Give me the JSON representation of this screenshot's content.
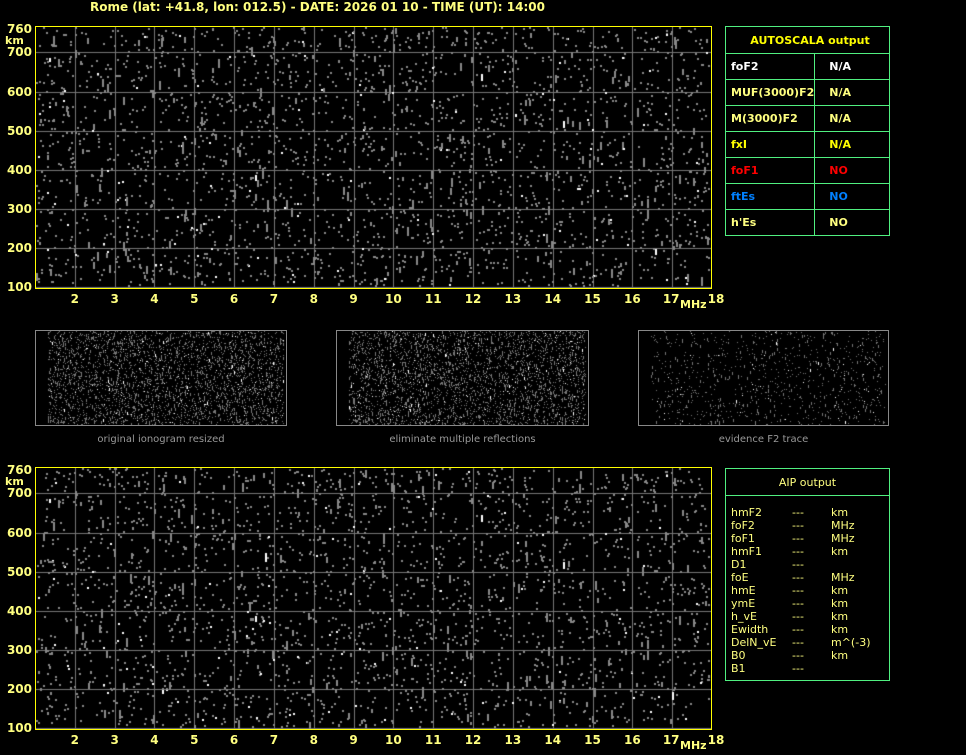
{
  "title": "Rome (lat: +41.8, lon: 012.5) - DATE: 2026 01 10 - TIME (UT): 14:00",
  "axes": {
    "y_ticks": [
      "760",
      "700",
      "600",
      "500",
      "400",
      "300",
      "200",
      "100"
    ],
    "y_unit": "km",
    "x_ticks": [
      "2",
      "3",
      "4",
      "5",
      "6",
      "7",
      "8",
      "9",
      "10",
      "11",
      "12",
      "13",
      "14",
      "15",
      "16",
      "17",
      "18"
    ],
    "x_unit": "MHz",
    "x_range": [
      1,
      18
    ],
    "y_range": [
      100,
      760
    ]
  },
  "autoscala": {
    "header": "AUTOSCALA output",
    "rows": [
      {
        "label": "foF2",
        "value": "N/A",
        "color": "#ffffff"
      },
      {
        "label": "MUF(3000)F2",
        "value": "N/A",
        "color": "#ffff80"
      },
      {
        "label": "M(3000)F2",
        "value": "N/A",
        "color": "#ffff80"
      },
      {
        "label": "fxI",
        "value": "N/A",
        "color": "#ffff00"
      },
      {
        "label": "foF1",
        "value": "NO",
        "color": "#ff0000"
      },
      {
        "label": "ftEs",
        "value": "NO",
        "color": "#0080ff"
      },
      {
        "label": "h'Es",
        "value": "NO",
        "color": "#ffff80"
      }
    ]
  },
  "thumbnails": [
    {
      "label": "original ionogram resized"
    },
    {
      "label": "eliminate multiple reflections"
    },
    {
      "label": "evidence F2 trace"
    }
  ],
  "aip": {
    "header": "AIP output",
    "rows": [
      {
        "label": "hmF2",
        "value": "---",
        "unit": "km"
      },
      {
        "label": "foF2",
        "value": "---",
        "unit": "MHz"
      },
      {
        "label": "foF1",
        "value": "---",
        "unit": "MHz"
      },
      {
        "label": "hmF1",
        "value": "---",
        "unit": "km"
      },
      {
        "label": "D1",
        "value": "---",
        "unit": ""
      },
      {
        "label": "foE",
        "value": "---",
        "unit": "MHz"
      },
      {
        "label": "hmE",
        "value": "---",
        "unit": "km"
      },
      {
        "label": "ymE",
        "value": "---",
        "unit": "km"
      },
      {
        "label": "h_vE",
        "value": "---",
        "unit": "km"
      },
      {
        "label": "Ewidth",
        "value": "---",
        "unit": "km"
      },
      {
        "label": "DelN_vE",
        "value": "---",
        "unit": "m^(-3)"
      },
      {
        "label": "B0",
        "value": "---",
        "unit": "km"
      },
      {
        "label": "B1",
        "value": "---",
        "unit": ""
      }
    ]
  }
}
